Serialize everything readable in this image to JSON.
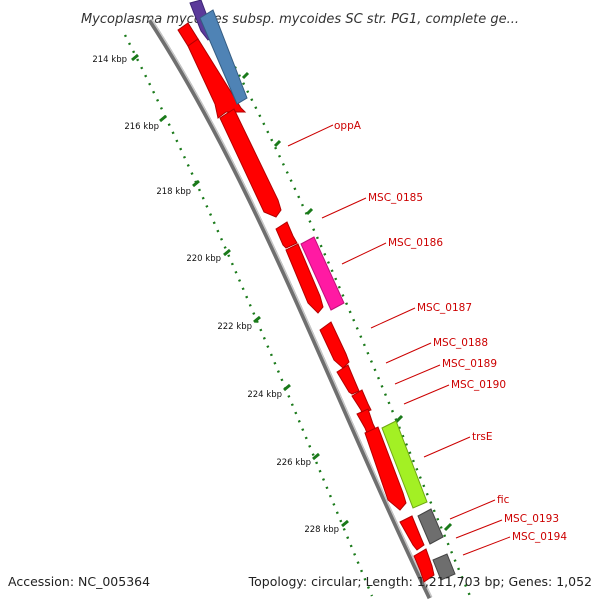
{
  "header": {
    "title": "Mycoplasma mycoides subsp. mycoides SC str. PG1, complete ge..."
  },
  "footer": {
    "accession": "Accession: NC_005364",
    "summary": "Topology: circular; Length: 1,211,703 bp; Genes: 1,052"
  },
  "map": {
    "ticks": [
      {
        "label": "214 kbp"
      },
      {
        "label": "216 kbp"
      },
      {
        "label": "218 kbp"
      },
      {
        "label": "220 kbp"
      },
      {
        "label": "222 kbp"
      },
      {
        "label": "224 kbp"
      },
      {
        "label": "226 kbp"
      },
      {
        "label": "228 kbp"
      }
    ],
    "genes": [
      {
        "label": "oppA"
      },
      {
        "label": "MSC_0185"
      },
      {
        "label": "MSC_0186"
      },
      {
        "label": "MSC_0187"
      },
      {
        "label": "MSC_0188"
      },
      {
        "label": "MSC_0189"
      },
      {
        "label": "MSC_0190"
      },
      {
        "label": "trsE"
      },
      {
        "label": "fic"
      },
      {
        "label": "MSC_0193"
      },
      {
        "label": "MSC_0194"
      }
    ],
    "colors": {
      "backbone": "#8c8c8c",
      "cds": "#ff0000",
      "cds_dark": "#b30000",
      "gene_blue": "#4f83b5",
      "gene_purple": "#5b3a9a",
      "gene_magenta": "#ff1aa3",
      "gene_lime": "#a3f024",
      "gene_gray": "#6e6e6e",
      "tick_green": "#1a7a1a",
      "label_red": "#cc0000"
    }
  }
}
